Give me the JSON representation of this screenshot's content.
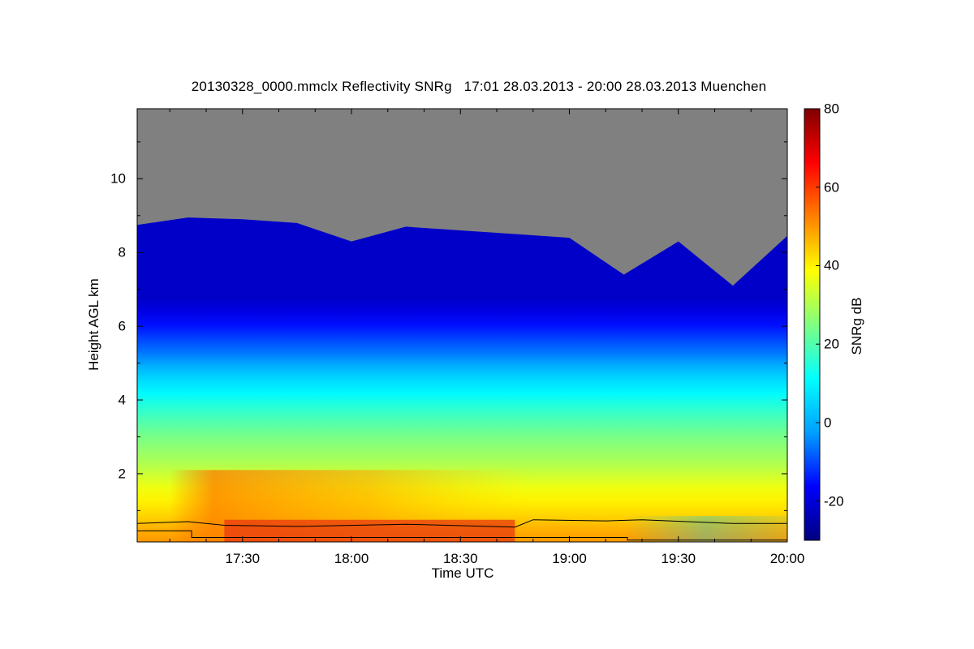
{
  "chart_data": {
    "type": "heatmap",
    "title": "20130328_0000.mmclx Reflectivity SNRg   17:01 28.03.2013 - 20:00 28.03.2013 Muenchen",
    "xlabel": "Time UTC",
    "ylabel": "Height AGL km",
    "colorbar_label": "SNRg dB",
    "x_range": [
      "17:01",
      "20:00"
    ],
    "y_range": [
      0.15,
      11.9
    ],
    "color_range": [
      -30,
      80
    ],
    "x_ticks": [
      "17:30",
      "18:00",
      "18:30",
      "19:00",
      "19:30",
      "20:00"
    ],
    "y_ticks": [
      2,
      4,
      6,
      8,
      10
    ],
    "color_ticks": [
      -20,
      0,
      20,
      40,
      60,
      80
    ],
    "no_signal_color": "#808080",
    "colormap": [
      "#00007f",
      "#0000ff",
      "#00a0ff",
      "#00ffff",
      "#80ff80",
      "#ffff00",
      "#ff8000",
      "#ff0000",
      "#800000"
    ],
    "cloud_top_km": [
      {
        "time": "17:01",
        "height": 8.75
      },
      {
        "time": "17:15",
        "height": 8.95
      },
      {
        "time": "17:30",
        "height": 8.9
      },
      {
        "time": "17:45",
        "height": 8.8
      },
      {
        "time": "18:00",
        "height": 8.3
      },
      {
        "time": "18:15",
        "height": 8.7
      },
      {
        "time": "18:30",
        "height": 8.6
      },
      {
        "time": "18:45",
        "height": 8.5
      },
      {
        "time": "19:00",
        "height": 8.4
      },
      {
        "time": "19:15",
        "height": 7.4
      },
      {
        "time": "19:30",
        "height": 8.3
      },
      {
        "time": "19:45",
        "height": 7.1
      },
      {
        "time": "20:00",
        "height": 8.45
      }
    ],
    "profile_snr_db": [
      {
        "height": 0.3,
        "snr": 50
      },
      {
        "height": 1.0,
        "snr": 44
      },
      {
        "height": 2.0,
        "snr": 38
      },
      {
        "height": 3.0,
        "snr": 30
      },
      {
        "height": 4.0,
        "snr": 24
      },
      {
        "height": 5.0,
        "snr": 16
      },
      {
        "height": 6.0,
        "snr": 6
      },
      {
        "height": 7.0,
        "snr": -6
      },
      {
        "height": 8.0,
        "snr": -15
      },
      {
        "height": 8.8,
        "snr": -22
      }
    ],
    "line_upper_km": [
      {
        "time": "17:01",
        "height": 0.65
      },
      {
        "time": "17:15",
        "height": 0.7
      },
      {
        "time": "17:25",
        "height": 0.6
      },
      {
        "time": "17:45",
        "height": 0.57
      },
      {
        "time": "18:15",
        "height": 0.63
      },
      {
        "time": "18:45",
        "height": 0.55
      },
      {
        "time": "18:50",
        "height": 0.75
      },
      {
        "time": "19:10",
        "height": 0.72
      },
      {
        "time": "19:20",
        "height": 0.75
      },
      {
        "time": "19:45",
        "height": 0.65
      },
      {
        "time": "20:00",
        "height": 0.65
      }
    ],
    "line_lower_km": [
      {
        "time": "17:01",
        "height": 0.45
      },
      {
        "time": "17:16",
        "height": 0.45
      },
      {
        "time": "17:16",
        "height": 0.27
      },
      {
        "time": "19:16",
        "height": 0.27
      },
      {
        "time": "19:16",
        "height": 0.2
      },
      {
        "time": "20:00",
        "height": 0.2
      }
    ]
  }
}
